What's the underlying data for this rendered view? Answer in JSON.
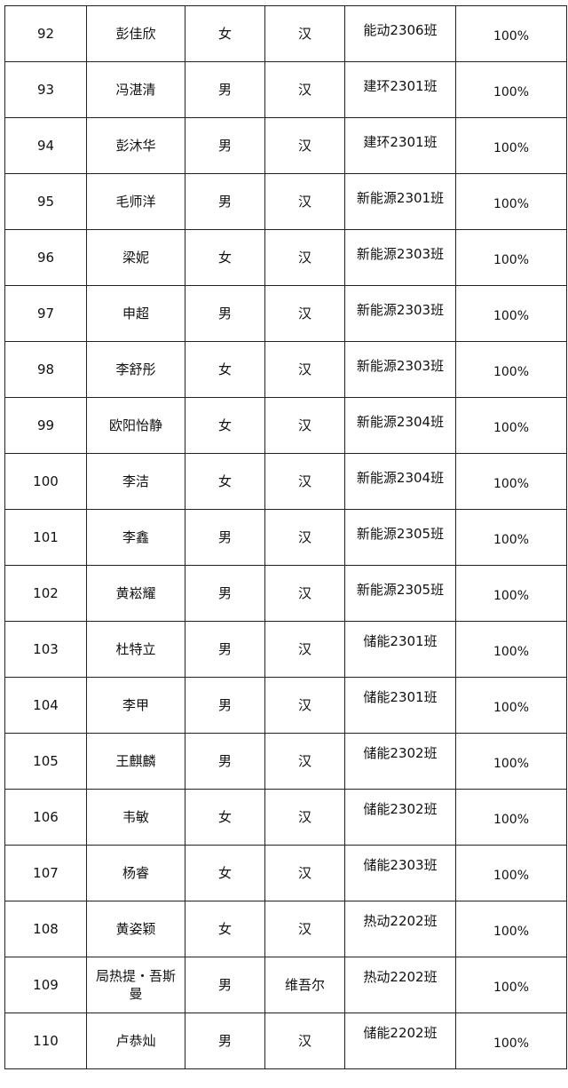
{
  "rows": [
    {
      "no": "92",
      "name": "彭佳欣",
      "gender": "女",
      "ethnicity": "汉",
      "class": "能动2306班",
      "rate": "100%"
    },
    {
      "no": "93",
      "name": "冯湛清",
      "gender": "男",
      "ethnicity": "汉",
      "class": "建环2301班",
      "rate": "100%"
    },
    {
      "no": "94",
      "name": "彭沐华",
      "gender": "男",
      "ethnicity": "汉",
      "class": "建环2301班",
      "rate": "100%"
    },
    {
      "no": "95",
      "name": "毛师洋",
      "gender": "男",
      "ethnicity": "汉",
      "class": "新能源2301班",
      "rate": "100%"
    },
    {
      "no": "96",
      "name": "梁妮",
      "gender": "女",
      "ethnicity": "汉",
      "class": "新能源2303班",
      "rate": "100%"
    },
    {
      "no": "97",
      "name": "申超",
      "gender": "男",
      "ethnicity": "汉",
      "class": "新能源2303班",
      "rate": "100%"
    },
    {
      "no": "98",
      "name": "李舒彤",
      "gender": "女",
      "ethnicity": "汉",
      "class": "新能源2303班",
      "rate": "100%"
    },
    {
      "no": "99",
      "name": "欧阳怡静",
      "gender": "女",
      "ethnicity": "汉",
      "class": "新能源2304班",
      "rate": "100%"
    },
    {
      "no": "100",
      "name": "李洁",
      "gender": "女",
      "ethnicity": "汉",
      "class": "新能源2304班",
      "rate": "100%"
    },
    {
      "no": "101",
      "name": "李鑫",
      "gender": "男",
      "ethnicity": "汉",
      "class": "新能源2305班",
      "rate": "100%"
    },
    {
      "no": "102",
      "name": "黄崧耀",
      "gender": "男",
      "ethnicity": "汉",
      "class": "新能源2305班",
      "rate": "100%"
    },
    {
      "no": "103",
      "name": "杜特立",
      "gender": "男",
      "ethnicity": "汉",
      "class": "储能2301班",
      "rate": "100%"
    },
    {
      "no": "104",
      "name": "李甲",
      "gender": "男",
      "ethnicity": "汉",
      "class": "储能2301班",
      "rate": "100%"
    },
    {
      "no": "105",
      "name": "王麒麟",
      "gender": "男",
      "ethnicity": "汉",
      "class": "储能2302班",
      "rate": "100%"
    },
    {
      "no": "106",
      "name": "韦敏",
      "gender": "女",
      "ethnicity": "汉",
      "class": "储能2302班",
      "rate": "100%"
    },
    {
      "no": "107",
      "name": "杨睿",
      "gender": "女",
      "ethnicity": "汉",
      "class": "储能2303班",
      "rate": "100%"
    },
    {
      "no": "108",
      "name": "黄姿颖",
      "gender": "女",
      "ethnicity": "汉",
      "class": "热动2202班",
      "rate": "100%"
    },
    {
      "no": "109",
      "name": "局热提・吾斯曼",
      "gender": "男",
      "ethnicity": "维吾尔",
      "class": "热动2202班",
      "rate": "100%"
    },
    {
      "no": "110",
      "name": "卢恭灿",
      "gender": "男",
      "ethnicity": "汉",
      "class": "储能2202班",
      "rate": "100%"
    }
  ]
}
